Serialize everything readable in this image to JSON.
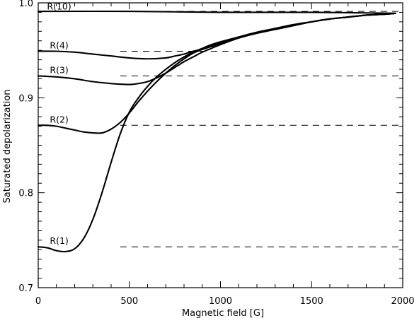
{
  "chart_data": {
    "type": "line",
    "xlabel": "Magnetic field [G]",
    "ylabel": "Saturated depolarization",
    "xlim": [
      0,
      2000
    ],
    "ylim": [
      0.7,
      1.0
    ],
    "xticks": [
      0,
      500,
      1000,
      1500,
      2000
    ],
    "xtick_labels": [
      "0",
      "500",
      "1000",
      "1500",
      "2000"
    ],
    "yticks": [
      0.7,
      0.8,
      0.9,
      1.0
    ],
    "ytick_labels": [
      "0.7",
      "0.8",
      "0.9",
      "1.0"
    ],
    "grid": false,
    "series": [
      {
        "name": "R(1)",
        "asymptote": 0.743,
        "x": [
          0,
          50,
          100,
          150,
          200,
          250,
          300,
          350,
          400,
          450,
          500,
          550,
          600,
          650,
          700,
          750,
          800,
          850,
          900,
          950,
          1000,
          1100,
          1200,
          1300,
          1400,
          1500,
          1600,
          1700,
          1800,
          1900,
          1960
        ],
        "y": [
          0.743,
          0.742,
          0.739,
          0.738,
          0.741,
          0.752,
          0.772,
          0.8,
          0.832,
          0.862,
          0.885,
          0.9,
          0.912,
          0.922,
          0.93,
          0.937,
          0.943,
          0.948,
          0.952,
          0.956,
          0.959,
          0.964,
          0.969,
          0.973,
          0.977,
          0.98,
          0.983,
          0.985,
          0.987,
          0.988,
          0.989
        ]
      },
      {
        "name": "R(2)",
        "asymptote": 0.871,
        "x": [
          0,
          50,
          100,
          150,
          200,
          250,
          300,
          350,
          400,
          450,
          500,
          550,
          600,
          650,
          700,
          750,
          800,
          850,
          900,
          950,
          1000,
          1100,
          1200,
          1300,
          1400,
          1500,
          1600,
          1700,
          1800,
          1900,
          1960
        ],
        "y": [
          0.871,
          0.871,
          0.87,
          0.868,
          0.866,
          0.864,
          0.863,
          0.863,
          0.867,
          0.874,
          0.884,
          0.896,
          0.907,
          0.917,
          0.926,
          0.934,
          0.941,
          0.947,
          0.951,
          0.955,
          0.958,
          0.964,
          0.969,
          0.973,
          0.977,
          0.98,
          0.983,
          0.985,
          0.987,
          0.988,
          0.989
        ]
      },
      {
        "name": "R(3)",
        "asymptote": 0.923,
        "x": [
          0,
          100,
          200,
          300,
          400,
          500,
          550,
          600,
          650,
          700,
          750,
          800,
          850,
          900,
          950,
          1000,
          1100,
          1200,
          1300,
          1400,
          1500,
          1600,
          1700,
          1800,
          1900,
          1960
        ],
        "y": [
          0.923,
          0.922,
          0.92,
          0.917,
          0.915,
          0.914,
          0.915,
          0.917,
          0.921,
          0.926,
          0.932,
          0.938,
          0.943,
          0.948,
          0.952,
          0.956,
          0.963,
          0.968,
          0.972,
          0.976,
          0.98,
          0.983,
          0.985,
          0.987,
          0.988,
          0.989
        ]
      },
      {
        "name": "R(4)",
        "asymptote": 0.949,
        "x": [
          0,
          100,
          200,
          300,
          400,
          500,
          600,
          700,
          750,
          800,
          850,
          900,
          950,
          1000,
          1100,
          1200,
          1300,
          1400,
          1500,
          1600,
          1700,
          1800,
          1900,
          1960
        ],
        "y": [
          0.949,
          0.949,
          0.948,
          0.946,
          0.944,
          0.942,
          0.941,
          0.942,
          0.944,
          0.946,
          0.949,
          0.951,
          0.954,
          0.957,
          0.963,
          0.968,
          0.972,
          0.976,
          0.98,
          0.983,
          0.985,
          0.987,
          0.988,
          0.989
        ]
      },
      {
        "name": "R(10)",
        "asymptote": 0.991,
        "x": [
          0,
          500,
          1000,
          1500,
          1960
        ],
        "y": [
          0.991,
          0.991,
          0.99,
          0.99,
          0.989
        ]
      }
    ],
    "label_positions_data": [
      {
        "name": "R(10)",
        "x": 115,
        "y": 0.993
      },
      {
        "name": "R(4)",
        "x": 115,
        "y": 0.952
      },
      {
        "name": "R(3)",
        "x": 115,
        "y": 0.926
      },
      {
        "name": "R(2)",
        "x": 115,
        "y": 0.874
      },
      {
        "name": "R(1)",
        "x": 115,
        "y": 0.746
      }
    ]
  }
}
